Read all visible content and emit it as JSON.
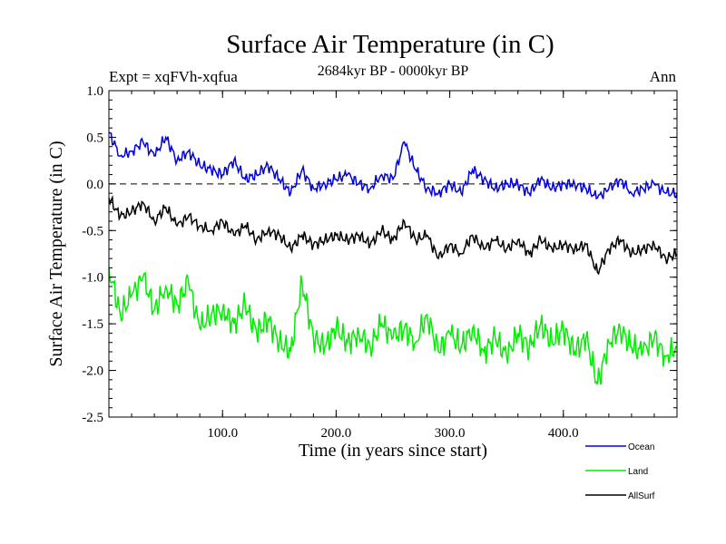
{
  "chart_data": {
    "type": "line",
    "title": "Surface Air Temperature (in C)",
    "subtitle": "2684kyr BP - 0000kyr BP",
    "experiment": "Expt = xqFVh-xqfua",
    "season": "Ann",
    "xlabel": "Time (in years since start)",
    "ylabel": "Surface Air Temperature (in C)",
    "xlim": [
      0,
      500
    ],
    "ylim": [
      -2.5,
      1.0
    ],
    "xticks": [
      100,
      200,
      300,
      400
    ],
    "xtick_labels": [
      "100.0",
      "200.0",
      "300.0",
      "400.0"
    ],
    "yticks": [
      1.0,
      0.5,
      0.0,
      -0.5,
      -1.0,
      -1.5,
      -2.0,
      -2.5
    ],
    "ytick_labels": [
      "1.0",
      "0.5",
      "0.0",
      "-0.5",
      "-1.0",
      "-1.5",
      "-2.0",
      "-2.5"
    ],
    "reference_line": 0.0,
    "legend_position": "bottom-right",
    "series": [
      {
        "name": "Ocean",
        "color": "#0000dd",
        "x": [
          0,
          10,
          20,
          30,
          40,
          50,
          60,
          70,
          80,
          90,
          100,
          110,
          120,
          130,
          140,
          150,
          160,
          170,
          180,
          190,
          200,
          210,
          220,
          230,
          240,
          250,
          260,
          270,
          280,
          290,
          300,
          310,
          320,
          330,
          340,
          350,
          360,
          370,
          380,
          390,
          400,
          410,
          420,
          430,
          440,
          450,
          460,
          470,
          480,
          490,
          500
        ],
        "values": [
          0.55,
          0.3,
          0.35,
          0.45,
          0.3,
          0.5,
          0.25,
          0.35,
          0.2,
          0.15,
          0.1,
          0.25,
          0.05,
          0.1,
          0.2,
          0.05,
          -0.1,
          0.15,
          -0.05,
          0.0,
          0.05,
          0.1,
          0.0,
          -0.05,
          0.1,
          0.05,
          0.45,
          0.15,
          -0.05,
          -0.1,
          0.0,
          -0.1,
          0.15,
          0.05,
          -0.05,
          0.0,
          0.0,
          -0.1,
          0.05,
          -0.05,
          0.0,
          0.0,
          -0.05,
          -0.15,
          -0.05,
          0.05,
          -0.1,
          -0.05,
          0.0,
          -0.1,
          -0.1
        ]
      },
      {
        "name": "Land",
        "color": "#00ee00",
        "x": [
          0,
          10,
          20,
          30,
          40,
          50,
          60,
          70,
          80,
          90,
          100,
          110,
          120,
          130,
          140,
          150,
          160,
          170,
          180,
          190,
          200,
          210,
          220,
          230,
          240,
          250,
          260,
          270,
          280,
          290,
          300,
          310,
          320,
          330,
          340,
          350,
          360,
          370,
          380,
          390,
          400,
          410,
          420,
          430,
          440,
          450,
          460,
          470,
          480,
          490,
          500
        ],
        "values": [
          -0.9,
          -1.4,
          -1.2,
          -1.0,
          -1.35,
          -1.1,
          -1.3,
          -1.05,
          -1.55,
          -1.4,
          -1.35,
          -1.5,
          -1.3,
          -1.6,
          -1.45,
          -1.7,
          -1.8,
          -1.05,
          -1.65,
          -1.75,
          -1.55,
          -1.7,
          -1.6,
          -1.75,
          -1.5,
          -1.65,
          -1.55,
          -1.7,
          -1.4,
          -1.8,
          -1.6,
          -1.75,
          -1.55,
          -1.8,
          -1.65,
          -1.85,
          -1.6,
          -1.75,
          -1.5,
          -1.7,
          -1.55,
          -1.8,
          -1.65,
          -2.15,
          -1.7,
          -1.55,
          -1.75,
          -1.8,
          -1.65,
          -1.85,
          -1.75
        ]
      },
      {
        "name": "AllSurf",
        "color": "#000000",
        "x": [
          0,
          10,
          20,
          30,
          40,
          50,
          60,
          70,
          80,
          90,
          100,
          110,
          120,
          130,
          140,
          150,
          160,
          170,
          180,
          190,
          200,
          210,
          220,
          230,
          240,
          250,
          260,
          270,
          280,
          290,
          300,
          310,
          320,
          330,
          340,
          350,
          360,
          370,
          380,
          390,
          400,
          410,
          420,
          430,
          440,
          450,
          460,
          470,
          480,
          490,
          500
        ],
        "values": [
          -0.15,
          -0.35,
          -0.3,
          -0.2,
          -0.4,
          -0.25,
          -0.45,
          -0.35,
          -0.45,
          -0.5,
          -0.4,
          -0.55,
          -0.45,
          -0.6,
          -0.5,
          -0.55,
          -0.7,
          -0.55,
          -0.65,
          -0.6,
          -0.55,
          -0.6,
          -0.55,
          -0.65,
          -0.5,
          -0.6,
          -0.4,
          -0.6,
          -0.55,
          -0.8,
          -0.65,
          -0.75,
          -0.55,
          -0.7,
          -0.6,
          -0.7,
          -0.6,
          -0.75,
          -0.6,
          -0.7,
          -0.65,
          -0.7,
          -0.65,
          -0.95,
          -0.7,
          -0.6,
          -0.75,
          -0.7,
          -0.65,
          -0.8,
          -0.75
        ]
      }
    ]
  }
}
